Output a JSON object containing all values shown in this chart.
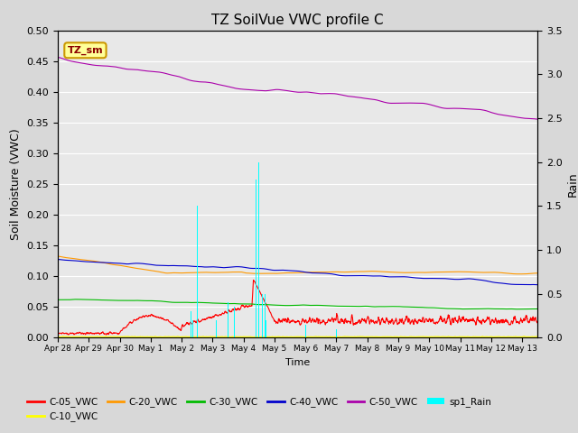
{
  "title": "TZ SoilVue VWC profile C",
  "xlabel": "Time",
  "ylabel_left": "Soil Moisture (VWC)",
  "ylabel_right": "Rain",
  "xlim_days": [
    0,
    15.5
  ],
  "ylim_left": [
    0.0,
    0.5
  ],
  "ylim_right": [
    0.0,
    3.5
  ],
  "x_tick_labels": [
    "Apr 28",
    "Apr 29",
    "Apr 30",
    "May 1",
    "May 2",
    "May 3",
    "May 4",
    "May 5",
    "May 6",
    "May 7",
    "May 8",
    "May 9",
    "May 10",
    "May 11",
    "May 12",
    "May 13"
  ],
  "annotation_text": "TZ_sm",
  "colors": {
    "C05": "#ff0000",
    "C10": "#ffff00",
    "C20": "#ff9900",
    "C30": "#00bb00",
    "C40": "#0000cc",
    "C50": "#aa00aa",
    "Rain": "#00ffff"
  },
  "legend_labels": [
    "C-05_VWC",
    "C-10_VWC",
    "C-20_VWC",
    "C-30_VWC",
    "C-40_VWC",
    "C-50_VWC",
    "sp1_Rain"
  ],
  "background_color": "#e8e8e8",
  "grid_color": "#ffffff",
  "n_points": 2000
}
